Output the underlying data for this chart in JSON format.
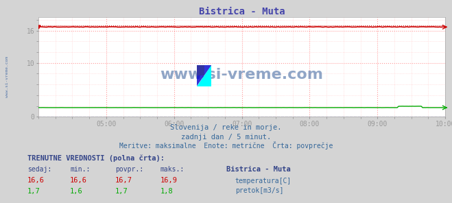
{
  "title": "Bistrica - Muta",
  "title_color": "#4444aa",
  "bg_color": "#d4d4d4",
  "plot_bg_color": "#ffffff",
  "grid_color_major": "#ff9999",
  "grid_color_minor": "#ffcccc",
  "xmin": 0,
  "xmax": 288,
  "xlabel_times": [
    48,
    96,
    144,
    192,
    240,
    288
  ],
  "xlabel_labels": [
    "05:00",
    "06:00",
    "07:00",
    "08:00",
    "09:00",
    "10:00"
  ],
  "ylabel_ticks": [
    0,
    10,
    16
  ],
  "ymin": 0,
  "ymax": 18.5,
  "temp_value": 16.7,
  "temp_max_value": 16.9,
  "flow_value": 1.7,
  "temp_color": "#cc0000",
  "flow_color": "#00aa00",
  "bottom_line_color": "#0000bb",
  "watermark_text": "www.si-vreme.com",
  "watermark_color": "#5577aa",
  "subtitle_lines": [
    "Slovenija / reke in morje.",
    "zadnji dan / 5 minut.",
    "Meritve: maksimalne  Enote: metrične  Črta: povprečje"
  ],
  "subtitle_color": "#336699",
  "table_header": "TRENUTNE VREDNOSTI (polna črta):",
  "table_cols": [
    "sedaj:",
    "min.:",
    "povpr.:",
    "maks.:"
  ],
  "table_temp": [
    "16,6",
    "16,6",
    "16,7",
    "16,9"
  ],
  "table_flow": [
    "1,7",
    "1,6",
    "1,7",
    "1,8"
  ],
  "legend_station": "Bistrica - Muta",
  "legend_temp": "temperatura[C]",
  "legend_flow": "pretok[m3/s]",
  "table_color": "#334488",
  "figwidth": 6.59,
  "figheight": 2.96,
  "dpi": 100
}
